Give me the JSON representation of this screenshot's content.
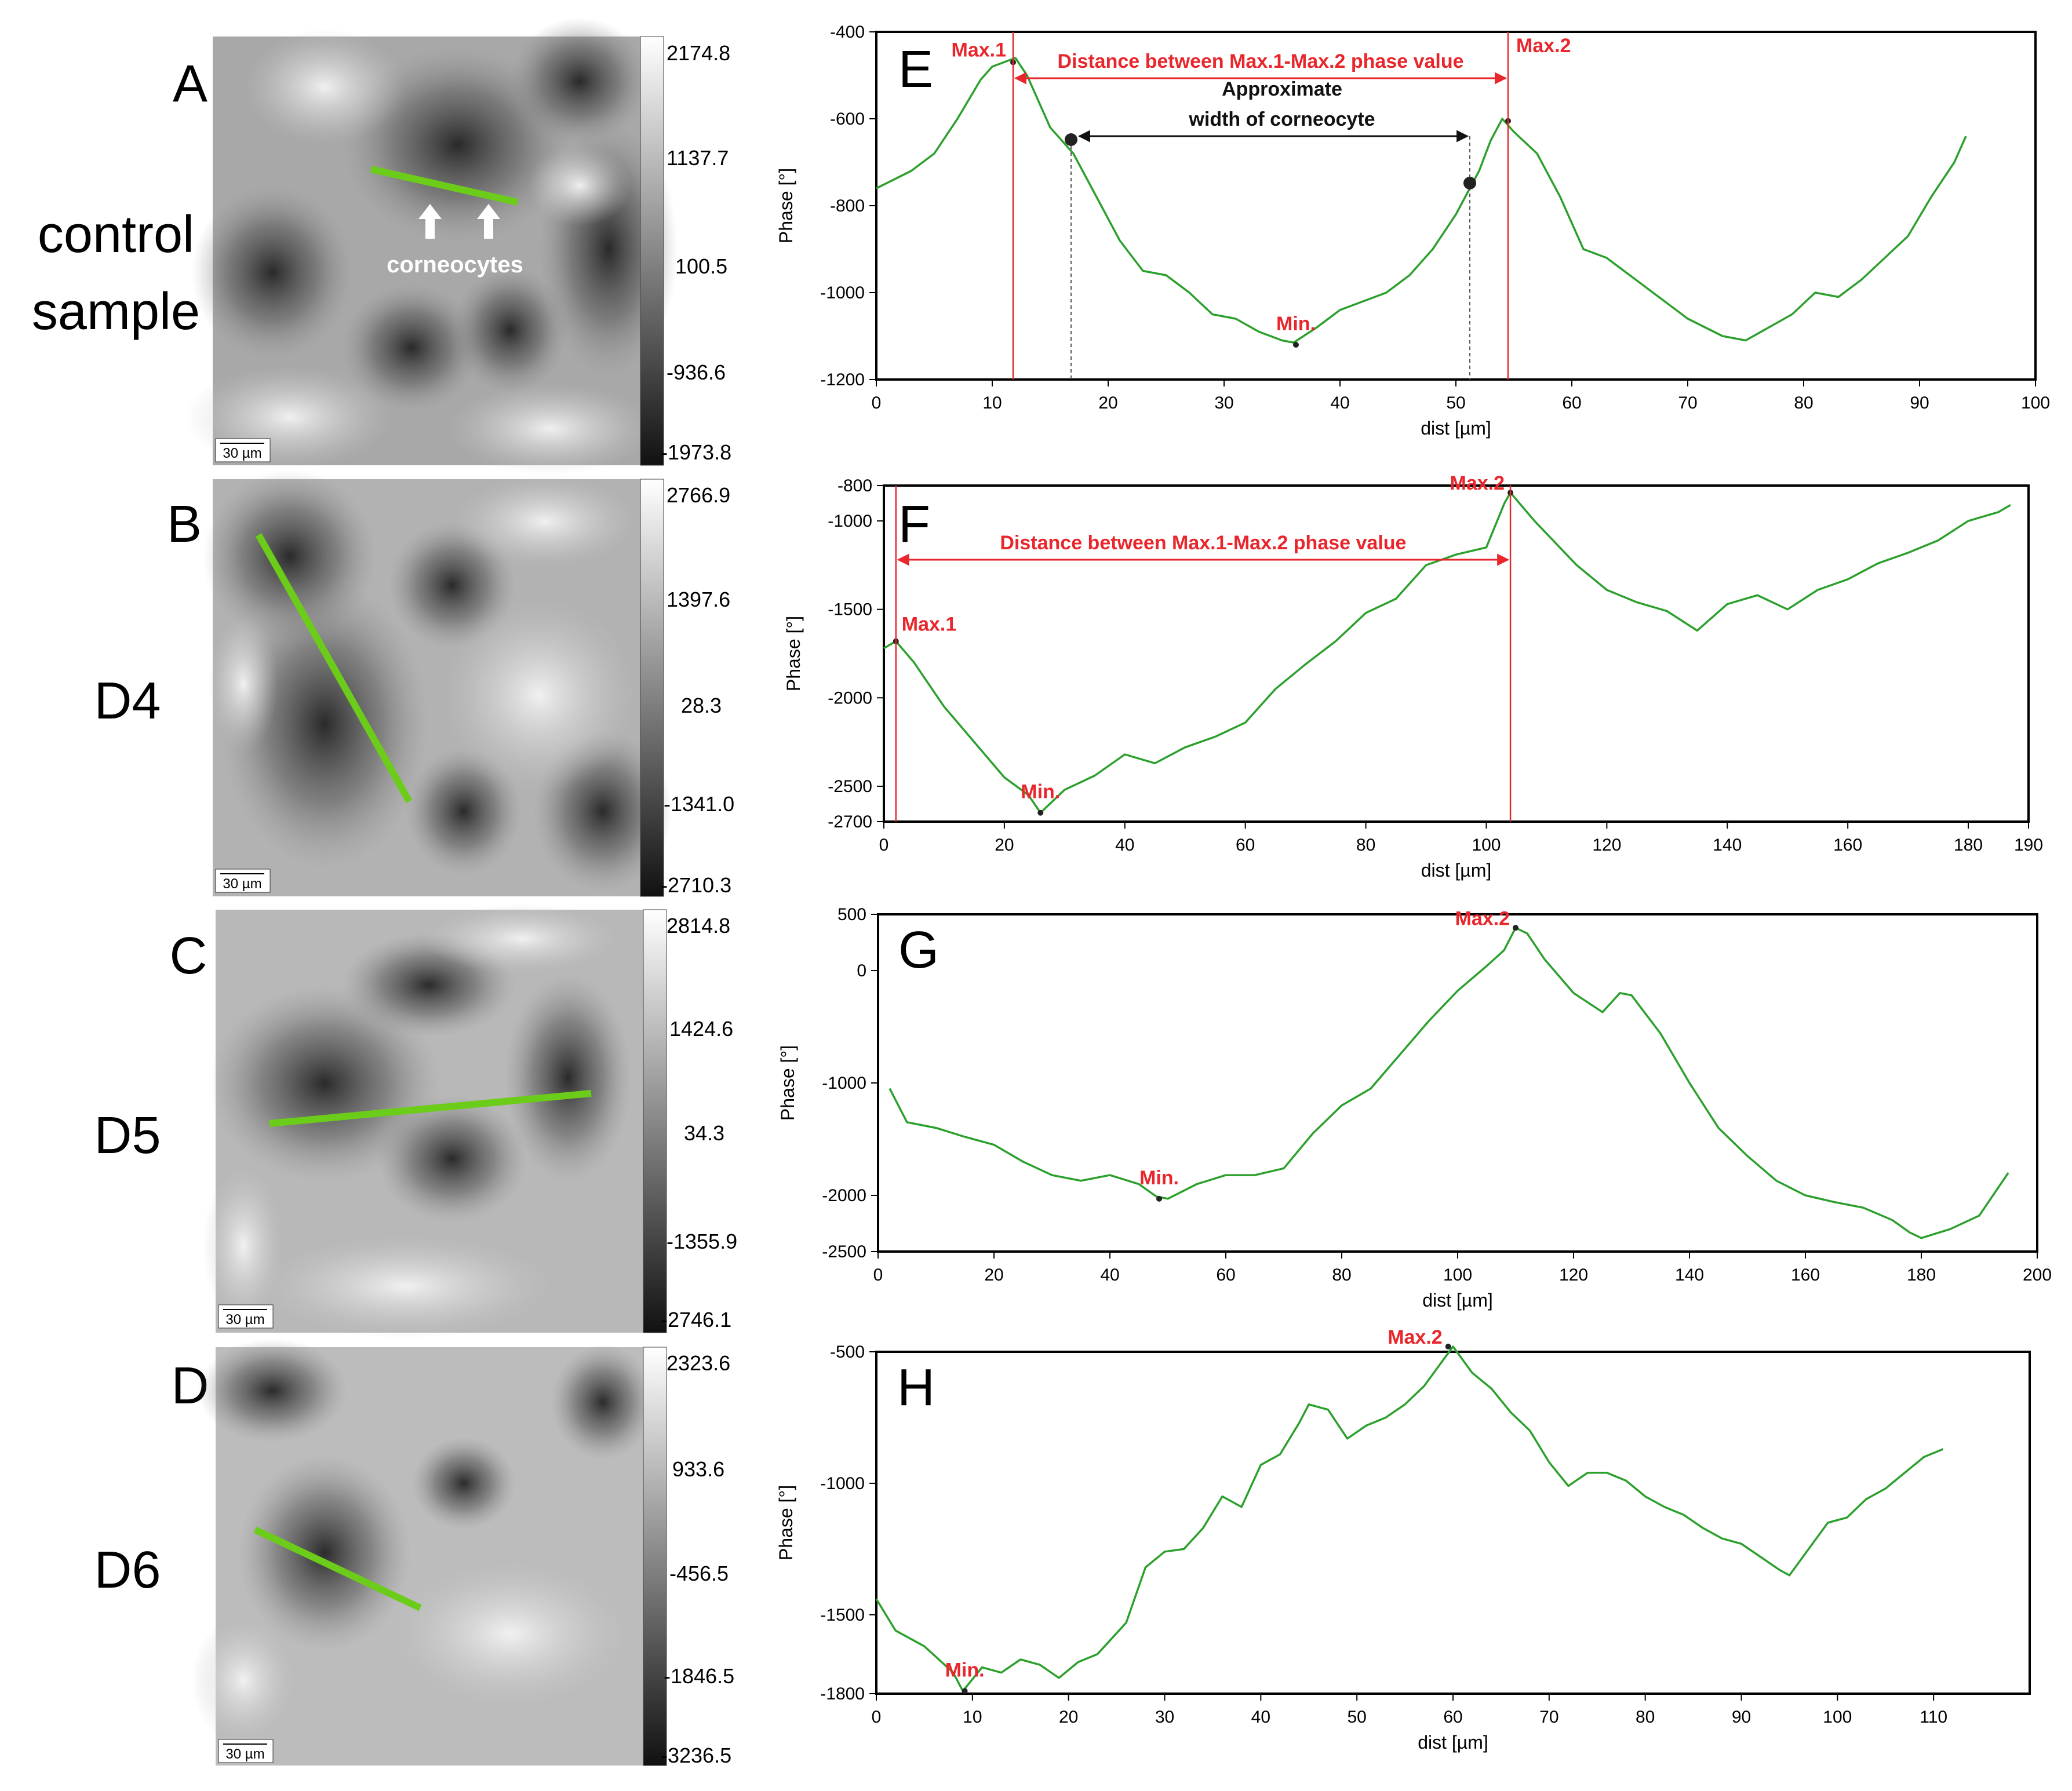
{
  "colors": {
    "line": "#2ca02c",
    "annotation": "#e8262c",
    "frame": "#000000",
    "scan_line": "#6ccc1a"
  },
  "icons": [
    "up-arrow-icon"
  ],
  "scale_bar": "30 µm",
  "row_labels": [
    {
      "panel": "A",
      "text": [
        "control",
        "sample"
      ]
    },
    {
      "panel": "B",
      "text": [
        "D4"
      ]
    },
    {
      "panel": "C",
      "text": [
        "D5"
      ]
    },
    {
      "panel": "D",
      "text": [
        "D6"
      ]
    }
  ],
  "colorbars": [
    {
      "values": [
        "2174.8",
        "1137.7",
        "100.5",
        "-936.6",
        "-1973.8"
      ]
    },
    {
      "values": [
        "2766.9",
        "1397.6",
        "28.3",
        "-1341.0",
        "-2710.3"
      ]
    },
    {
      "values": [
        "2814.8",
        "1424.6",
        "34.3",
        "-1355.9",
        "-2746.1"
      ]
    },
    {
      "values": [
        "2323.6",
        "933.6",
        "-456.5",
        "-1846.5",
        "-3236.5"
      ]
    }
  ],
  "corneocytes_label": "corneocytes",
  "chart_data": [
    {
      "panel": "E",
      "type": "line",
      "xlabel": "dist [µm]",
      "ylabel": "Phase [°]",
      "xlim": [
        0,
        100
      ],
      "ylim": [
        -1200,
        -400
      ],
      "xticks": [
        0,
        10,
        20,
        30,
        40,
        50,
        60,
        70,
        80,
        90,
        100
      ],
      "yticks": [
        -400,
        -600,
        -800,
        -1000,
        -1200
      ],
      "x": [
        0,
        3,
        5,
        7,
        9,
        10,
        11,
        12,
        13,
        15,
        17,
        19,
        21,
        23,
        25,
        27,
        29,
        31,
        33,
        35,
        36,
        38,
        40,
        42,
        44,
        46,
        48,
        50,
        52,
        53,
        54,
        55,
        57,
        59,
        61,
        63,
        65,
        67,
        70,
        73,
        75,
        77,
        79,
        81,
        83,
        85,
        87,
        89,
        91,
        93,
        94
      ],
      "y": [
        -760,
        -720,
        -680,
        -600,
        -510,
        -480,
        -470,
        -460,
        -500,
        -620,
        -680,
        -780,
        -880,
        -950,
        -960,
        -1000,
        -1050,
        -1060,
        -1090,
        -1110,
        -1115,
        -1080,
        -1040,
        -1020,
        -1000,
        -960,
        -900,
        -820,
        -720,
        -650,
        -600,
        -630,
        -680,
        -780,
        -900,
        -920,
        -960,
        -1000,
        -1060,
        -1100,
        -1110,
        -1080,
        -1050,
        -1000,
        -1010,
        -970,
        -920,
        -870,
        -780,
        -700,
        -640
      ],
      "annotations": [
        {
          "text": "Max.1",
          "x": 11.8,
          "y": -470
        },
        {
          "text": "Max.2",
          "x": 54.5,
          "y": -605
        },
        {
          "text": "Min.",
          "x": 36.2,
          "y": -1120
        }
      ],
      "distance_label": "Distance between Max.1-Max.2 phase value",
      "width_label": [
        "Approximate",
        "width of corneocyte"
      ],
      "width_points": [
        {
          "x": 16.8,
          "y": -648
        },
        {
          "x": 51.2,
          "y": -748
        }
      ]
    },
    {
      "panel": "F",
      "type": "line",
      "xlabel": "dist [µm]",
      "ylabel": "Phase [°]",
      "xlim": [
        0,
        190
      ],
      "ylim": [
        -2700,
        -800
      ],
      "xticks": [
        0,
        20,
        40,
        60,
        80,
        100,
        120,
        140,
        160,
        180,
        190
      ],
      "yticks": [
        -800,
        -1000,
        -1500,
        -2000,
        -2500,
        -2700
      ],
      "x": [
        0,
        2,
        5,
        10,
        15,
        20,
        24,
        26,
        30,
        35,
        40,
        45,
        50,
        55,
        60,
        65,
        70,
        75,
        80,
        85,
        90,
        95,
        100,
        103,
        104,
        108,
        115,
        120,
        125,
        130,
        135,
        140,
        145,
        150,
        155,
        160,
        165,
        170,
        175,
        180,
        185,
        187
      ],
      "y": [
        -1720,
        -1680,
        -1800,
        -2050,
        -2250,
        -2450,
        -2550,
        -2650,
        -2520,
        -2440,
        -2320,
        -2370,
        -2280,
        -2220,
        -2140,
        -1950,
        -1810,
        -1680,
        -1520,
        -1440,
        -1250,
        -1190,
        -1150,
        -900,
        -840,
        -1000,
        -1250,
        -1390,
        -1460,
        -1510,
        -1620,
        -1470,
        -1420,
        -1500,
        -1390,
        -1330,
        -1240,
        -1180,
        -1110,
        -1000,
        -950,
        -910
      ],
      "annotations": [
        {
          "text": "Max.1",
          "x": 2,
          "y": -1680
        },
        {
          "text": "Max.2",
          "x": 104,
          "y": -840
        },
        {
          "text": "Min.",
          "x": 26,
          "y": -2650
        }
      ],
      "distance_label": "Distance between Max.1-Max.2 phase value"
    },
    {
      "panel": "G",
      "type": "line",
      "xlabel": "dist [µm]",
      "ylabel": "Phase [°]",
      "xlim": [
        0,
        200
      ],
      "ylim": [
        -2500,
        500
      ],
      "xticks": [
        0,
        20,
        40,
        60,
        80,
        100,
        120,
        140,
        160,
        180,
        200
      ],
      "yticks": [
        500,
        0,
        -1000,
        -2000,
        -2500
      ],
      "x": [
        2,
        5,
        10,
        15,
        20,
        25,
        30,
        35,
        40,
        45,
        48,
        50,
        55,
        60,
        65,
        70,
        75,
        80,
        85,
        90,
        95,
        100,
        105,
        108,
        110,
        112,
        115,
        120,
        125,
        128,
        130,
        135,
        140,
        145,
        150,
        155,
        160,
        165,
        170,
        175,
        178,
        180,
        185,
        190,
        195
      ],
      "y": [
        -1050,
        -1350,
        -1400,
        -1480,
        -1550,
        -1700,
        -1820,
        -1870,
        -1820,
        -1900,
        -2010,
        -2030,
        -1900,
        -1820,
        -1820,
        -1760,
        -1450,
        -1200,
        -1050,
        -750,
        -450,
        -180,
        40,
        180,
        380,
        330,
        100,
        -200,
        -370,
        -200,
        -220,
        -560,
        -1000,
        -1400,
        -1650,
        -1870,
        -2000,
        -2060,
        -2110,
        -2220,
        -2330,
        -2380,
        -2300,
        -2180,
        -1800
      ],
      "annotations": [
        {
          "text": "Max.2",
          "x": 110,
          "y": 380
        },
        {
          "text": "Min.",
          "x": 48.5,
          "y": -2030
        }
      ]
    },
    {
      "panel": "H",
      "type": "line",
      "xlabel": "dist [µm]",
      "ylabel": "Phase [°]",
      "xlim": [
        0,
        120
      ],
      "ylim": [
        -1800,
        -500
      ],
      "xticks": [
        0,
        10,
        20,
        30,
        40,
        50,
        60,
        70,
        80,
        90,
        100,
        110
      ],
      "yticks": [
        -500,
        -1000,
        -1500,
        -1800
      ],
      "x": [
        0,
        2,
        5,
        8,
        9,
        11,
        13,
        15,
        17,
        19,
        21,
        23,
        26,
        28,
        30,
        32,
        34,
        36,
        38,
        40,
        42,
        44,
        45,
        47,
        49,
        51,
        53,
        55,
        57,
        59,
        60,
        62,
        64,
        66,
        68,
        70,
        72,
        74,
        76,
        78,
        80,
        82,
        84,
        86,
        88,
        90,
        92,
        94,
        95,
        97,
        99,
        101,
        103,
        105,
        107,
        109,
        111
      ],
      "y": [
        -1440,
        -1560,
        -1620,
        -1720,
        -1790,
        -1700,
        -1720,
        -1670,
        -1690,
        -1740,
        -1680,
        -1650,
        -1530,
        -1320,
        -1260,
        -1250,
        -1170,
        -1050,
        -1090,
        -930,
        -890,
        -770,
        -700,
        -720,
        -830,
        -780,
        -750,
        -700,
        -630,
        -530,
        -480,
        -580,
        -640,
        -730,
        -800,
        -920,
        -1010,
        -960,
        -960,
        -990,
        -1050,
        -1090,
        -1120,
        -1170,
        -1210,
        -1230,
        -1280,
        -1330,
        -1350,
        -1250,
        -1150,
        -1130,
        -1060,
        -1020,
        -960,
        -900,
        -870
      ],
      "annotations": [
        {
          "text": "Max.2",
          "x": 59.5,
          "y": -480
        },
        {
          "text": "Min.",
          "x": 9.2,
          "y": -1790
        }
      ]
    }
  ]
}
